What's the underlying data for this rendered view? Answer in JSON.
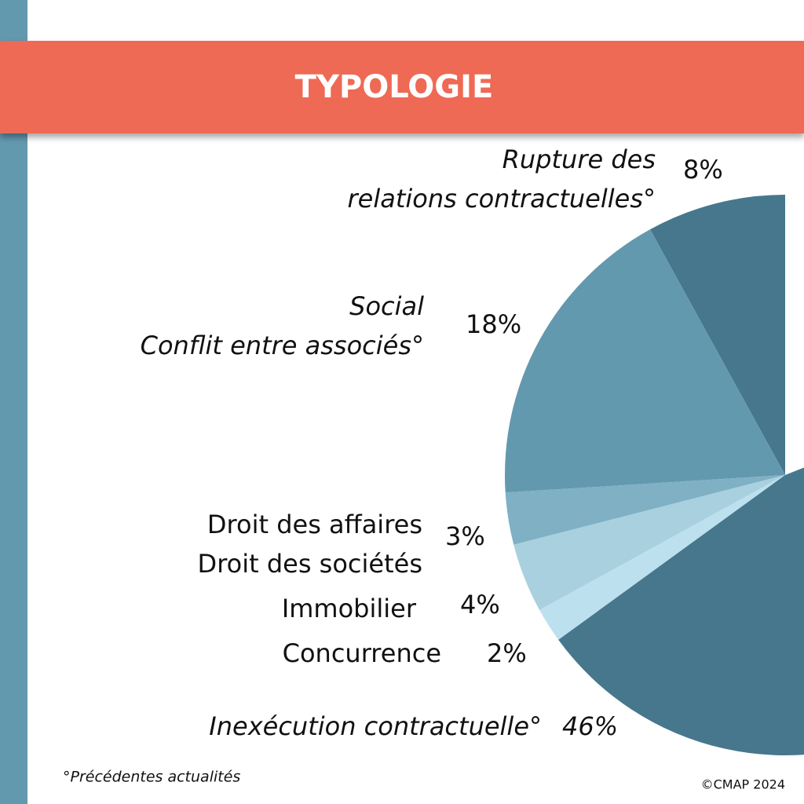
{
  "header": {
    "title": "TYPOLOGIE"
  },
  "chart_data": {
    "type": "pie",
    "categories": [
      [
        "Rupture des",
        "relations contractuelles°"
      ],
      [
        "Social",
        "Conflit entre associés°"
      ],
      [
        "Droit des affaires",
        "Droit des sociétés"
      ],
      [
        "Immobilier"
      ],
      [
        "Concurrence"
      ],
      [
        "Inexécution contractuelle°"
      ]
    ],
    "values": [
      8,
      18,
      3,
      4,
      2,
      46
    ],
    "value_labels": [
      "8%",
      "18%",
      "3%",
      "4%",
      "2%",
      "46%"
    ],
    "colors": [
      "#47778c",
      "#6399af",
      "#7fb0c4",
      "#a9d0de",
      "#bde0ef",
      "#47778c"
    ]
  },
  "footer": {
    "note": "°Précédentes actualités",
    "copyright": "©CMAP 2024"
  }
}
